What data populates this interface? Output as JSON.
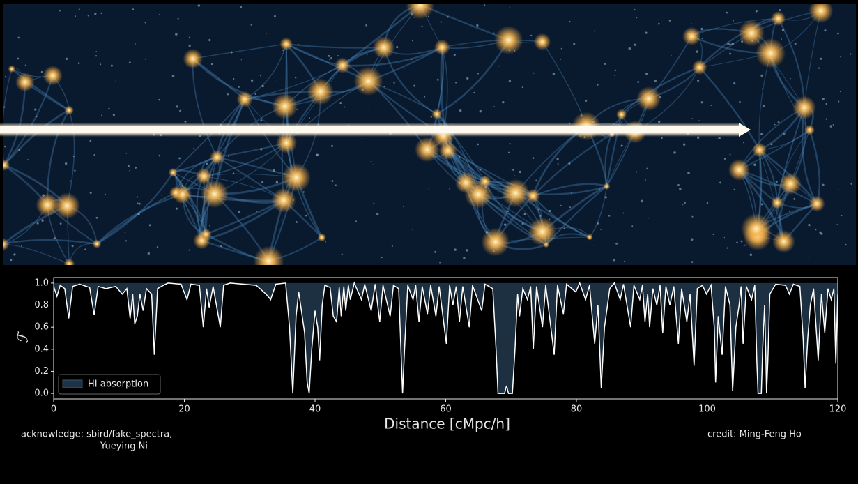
{
  "chart_data": {
    "type": "line",
    "xlabel": "Distance [cMpc/h]",
    "ylabel": "ℱ",
    "xlim": [
      0,
      120
    ],
    "ylim": [
      -0.05,
      1.05
    ],
    "xticks": [
      0,
      20,
      40,
      60,
      80,
      100,
      120
    ],
    "yticks": [
      {
        "value": 0,
        "label": "0.0"
      },
      0.2,
      0.4,
      0.6,
      0.8,
      {
        "value": 1,
        "label": "1.0"
      }
    ],
    "grid": false,
    "legend": "lower left",
    "x": [
      0,
      0.5,
      1,
      1.7,
      2.3,
      2.9,
      4,
      5.5,
      6.2,
      6.8,
      8,
      9.5,
      10.5,
      11.2,
      11.7,
      12.1,
      12.4,
      12.8,
      13.2,
      13.7,
      14.2,
      15,
      15.4,
      15.9,
      16.8,
      17.5,
      19.5,
      20.4,
      21,
      22.3,
      22.9,
      23.4,
      23.8,
      24.4,
      25.5,
      26,
      27,
      31,
      32.5,
      33.2,
      34,
      35.5,
      36.1,
      36.6,
      37.1,
      37.5,
      38.4,
      38.8,
      39.1,
      39.5,
      40,
      40.4,
      40.7,
      41.1,
      41.5,
      42.3,
      42.8,
      43.3,
      43.7,
      44,
      44.4,
      44.7,
      45.1,
      45.4,
      46,
      47.1,
      47.6,
      48.6,
      49.2,
      49.9,
      50.4,
      51.5,
      52,
      52.8,
      53.2,
      53.4,
      53.7,
      54.2,
      55,
      55.4,
      55.9,
      56.4,
      57.2,
      57.7,
      58.5,
      59,
      60.1,
      60.6,
      61.1,
      61.6,
      62.1,
      62.6,
      63.6,
      64.1,
      65.5,
      66,
      67.2,
      67.7,
      68,
      69,
      69.3,
      69.6,
      70.2,
      70.6,
      71,
      71.3,
      71.8,
      72.5,
      73,
      73.4,
      73.9,
      74.8,
      75.3,
      76.6,
      77.1,
      78,
      78.5,
      79.9,
      80.5,
      81.4,
      82,
      82.8,
      83.3,
      83.8,
      84.3,
      85.1,
      85.8,
      86.7,
      87.2,
      88.3,
      88.8,
      89.7,
      90.1,
      90.5,
      90.9,
      91.2,
      91.7,
      92.3,
      92.8,
      93.2,
      93.7,
      94.3,
      94.9,
      95.6,
      96.1,
      96.9,
      97.4,
      98,
      98.5,
      99.3,
      99.9,
      100.6,
      101.1,
      101.3,
      101.7,
      102.3,
      102.8,
      103.5,
      103.9,
      104.4,
      104.9,
      105.2,
      105.5,
      106,
      106.8,
      107.3,
      107.6,
      107.8,
      108.3,
      108.5,
      108.8,
      109,
      109.1,
      109.3,
      109.6,
      110.5,
      112,
      112.6,
      113.2,
      114.2,
      114.7,
      115,
      115.4,
      115.8,
      116.3,
      117,
      117.5,
      118,
      118.5,
      119,
      119.4,
      119.7,
      120
    ],
    "series": [
      {
        "name": "HI absorption",
        "color": "#1f3346",
        "line_color": "#ffffff",
        "values": [
          0.97,
          0.88,
          0.98,
          0.95,
          0.68,
          0.97,
          0.99,
          0.96,
          0.71,
          0.97,
          0.95,
          0.97,
          0.9,
          0.95,
          0.68,
          0.9,
          0.63,
          0.7,
          0.9,
          0.75,
          0.95,
          0.9,
          0.35,
          0.95,
          0.98,
          1.0,
          0.99,
          0.85,
          0.99,
          0.98,
          0.6,
          0.95,
          0.78,
          0.97,
          0.6,
          0.98,
          1.0,
          0.98,
          0.9,
          0.85,
          0.99,
          1.0,
          0.6,
          0.0,
          0.7,
          0.92,
          0.55,
          0.1,
          0.0,
          0.4,
          0.75,
          0.6,
          0.3,
          0.8,
          0.98,
          0.96,
          0.7,
          0.65,
          0.96,
          0.7,
          0.97,
          0.75,
          0.98,
          0.85,
          1.0,
          0.85,
          0.99,
          0.75,
          0.99,
          0.65,
          0.98,
          0.7,
          0.98,
          0.95,
          0.3,
          0.0,
          0.4,
          0.98,
          0.85,
          0.98,
          0.65,
          0.97,
          0.72,
          0.98,
          0.7,
          0.97,
          0.45,
          0.98,
          0.8,
          0.97,
          0.65,
          0.97,
          0.6,
          0.98,
          0.75,
          0.99,
          0.95,
          0.4,
          0.0,
          0.0,
          0.07,
          0.0,
          0.0,
          0.4,
          0.9,
          0.7,
          0.95,
          0.85,
          0.97,
          0.4,
          0.97,
          0.6,
          0.98,
          0.35,
          0.98,
          0.72,
          0.99,
          0.92,
          1.0,
          0.85,
          0.98,
          0.45,
          0.8,
          0.05,
          0.6,
          0.95,
          1.0,
          0.85,
          0.99,
          0.6,
          0.98,
          0.85,
          0.98,
          0.65,
          0.9,
          0.6,
          0.95,
          0.8,
          0.98,
          0.55,
          0.97,
          0.8,
          0.97,
          0.45,
          0.95,
          0.65,
          0.9,
          0.25,
          0.95,
          0.98,
          0.9,
          0.98,
          0.6,
          0.1,
          0.7,
          0.35,
          0.97,
          0.8,
          0.02,
          0.6,
          0.8,
          0.97,
          0.45,
          0.97,
          0.85,
          0.98,
          0.3,
          0.0,
          0.0,
          0.4,
          0.8,
          0.3,
          0.0,
          0.3,
          0.9,
          0.99,
          0.98,
          0.9,
          0.99,
          0.97,
          0.5,
          0.05,
          0.5,
          0.8,
          0.95,
          0.3,
          0.9,
          0.55,
          0.95,
          0.85,
          0.95,
          0.27,
          0.9
        ]
      }
    ],
    "annotations": [
      "acknowledge: sbird/fake_spectra,",
      "Yueying Ni",
      "credit: Ming-Feng Ho"
    ]
  }
}
